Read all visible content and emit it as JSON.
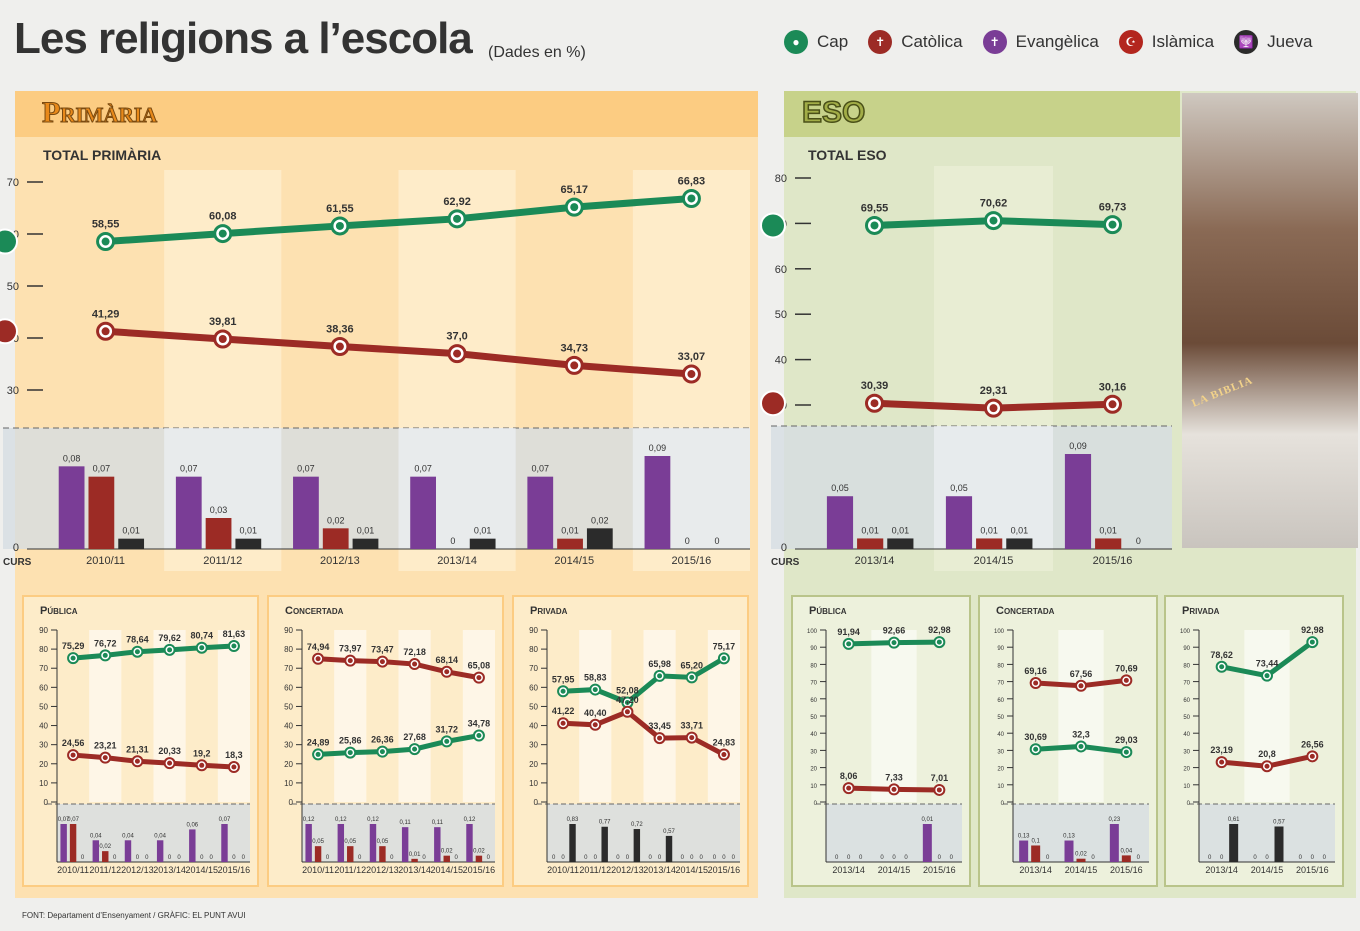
{
  "header": {
    "title": "Les religions a l’escola",
    "subtitle": "(Dades en %)"
  },
  "legend": [
    {
      "label": "Cap",
      "color": "#1b8a57",
      "icon": "circle-icon"
    },
    {
      "label": "Catòlica",
      "color": "#9c2b25",
      "icon": "cross-icon"
    },
    {
      "label": "Evangèlica",
      "color": "#7a3d96",
      "icon": "cross-icon"
    },
    {
      "label": "Islàmica",
      "color": "#b3261e",
      "icon": "crescent-icon"
    },
    {
      "label": "Jueva",
      "color": "#2b2b2b",
      "icon": "menorah-icon"
    }
  ],
  "primaria": {
    "heading": "Primària",
    "total_label": "TOTAL PRIMÀRIA"
  },
  "eso": {
    "heading": "ESO",
    "total_label": "TOTAL ESO"
  },
  "photo": {
    "book_text": "LA BIBLIA"
  },
  "source": "FONT: Departament d’Ensenyament / GRÀFIC: EL PUNT AVUI",
  "chart_data": [
    {
      "id": "total-primaria",
      "type": "line",
      "title": "TOTAL PRIMÀRIA",
      "x_label": "CURS",
      "categories": [
        "2010/11",
        "2011/12",
        "2012/13",
        "2013/14",
        "2014/15",
        "2015/16"
      ],
      "ylim_line": [
        30,
        70
      ],
      "yticks_line": [
        30,
        40,
        50,
        60,
        70
      ],
      "series": [
        {
          "name": "Cap",
          "color": "#1b8a57",
          "values": [
            58.55,
            60.08,
            61.55,
            62.92,
            65.17,
            66.83
          ],
          "labels": [
            "58,55",
            "60,08",
            "61,55",
            "62,92",
            "65,17",
            "66,83"
          ]
        },
        {
          "name": "Catòlica",
          "color": "#9c2b25",
          "values": [
            41.29,
            39.81,
            38.36,
            37.0,
            34.73,
            33.07
          ],
          "labels": [
            "41,29",
            "39,81",
            "38,36",
            "37,0",
            "34,73",
            "33,07"
          ]
        }
      ],
      "bar_series": [
        {
          "name": "Evangèlica",
          "color": "#7a3d96",
          "values": [
            0.08,
            0.07,
            0.07,
            0.07,
            0.07,
            0.09
          ],
          "labels": [
            "0,08",
            "0,07",
            "0,07",
            "0,07",
            "0,07",
            "0,09"
          ]
        },
        {
          "name": "Islàmica",
          "color": "#9c2b25",
          "values": [
            0.07,
            0.03,
            0.02,
            0,
            0.01,
            0
          ],
          "labels": [
            "0,07",
            "0,03",
            "0,02",
            "0",
            "0,01",
            "0"
          ]
        },
        {
          "name": "Jueva",
          "color": "#2b2b2b",
          "values": [
            0.01,
            0.01,
            0.01,
            0.01,
            0.02,
            0
          ],
          "labels": [
            "0,01",
            "0,01",
            "0,01",
            "0,01",
            "0,02",
            "0"
          ]
        }
      ],
      "bar_zero_label": "0"
    },
    {
      "id": "total-eso",
      "type": "line",
      "title": "TOTAL ESO",
      "x_label": "CURS",
      "categories": [
        "2013/14",
        "2014/15",
        "2015/16"
      ],
      "ylim_line": [
        30,
        80
      ],
      "yticks_line": [
        30,
        40,
        50,
        60,
        70,
        80
      ],
      "series": [
        {
          "name": "Cap",
          "color": "#1b8a57",
          "values": [
            69.55,
            70.62,
            69.73
          ],
          "labels": [
            "69,55",
            "70,62",
            "69,73"
          ]
        },
        {
          "name": "Catòlica",
          "color": "#9c2b25",
          "values": [
            30.39,
            29.31,
            30.16
          ],
          "labels": [
            "30,39",
            "29,31",
            "30,16"
          ]
        }
      ],
      "bar_series": [
        {
          "name": "Evangèlica",
          "color": "#7a3d96",
          "values": [
            0.05,
            0.05,
            0.09
          ],
          "labels": [
            "0,05",
            "0,05",
            "0,09"
          ]
        },
        {
          "name": "Islàmica",
          "color": "#9c2b25",
          "values": [
            0.01,
            0.01,
            0.01
          ],
          "labels": [
            "0,01",
            "0,01",
            "0,01"
          ]
        },
        {
          "name": "Jueva",
          "color": "#2b2b2b",
          "values": [
            0.01,
            0.01,
            0
          ],
          "labels": [
            "0,01",
            "0,01",
            "0"
          ]
        }
      ],
      "bar_zero_label": "0"
    },
    {
      "id": "primaria-publica",
      "type": "line",
      "title": "Pública",
      "categories": [
        "2010/11",
        "2011/12",
        "2012/13",
        "2013/14",
        "2014/15",
        "2015/16"
      ],
      "ylim": [
        0,
        90
      ],
      "yticks": [
        0,
        10,
        20,
        30,
        40,
        50,
        60,
        70,
        80,
        90
      ],
      "series": [
        {
          "name": "Cap",
          "color": "#1b8a57",
          "values": [
            75.29,
            76.72,
            78.64,
            79.62,
            80.74,
            81.63
          ],
          "labels": [
            "75,29",
            "76,72",
            "78,64",
            "79,62",
            "80,74",
            "81,63"
          ]
        },
        {
          "name": "Catòlica",
          "color": "#9c2b25",
          "values": [
            24.56,
            23.21,
            21.31,
            20.33,
            19.2,
            18.3
          ],
          "labels": [
            "24,56",
            "23,21",
            "21,31",
            "20,33",
            "19,2",
            "18,3"
          ]
        }
      ],
      "bar_series": [
        {
          "name": "Evangèlica",
          "color": "#7a3d96",
          "values": [
            0.07,
            0.04,
            0.04,
            0.04,
            0.06,
            0.07
          ],
          "labels": [
            "0,07",
            "0,04",
            "0,04",
            "0,04",
            "0,06",
            "0,07"
          ]
        },
        {
          "name": "Islàmica",
          "color": "#9c2b25",
          "values": [
            0.07,
            0.02,
            0,
            0,
            0,
            0
          ],
          "labels": [
            "0,07",
            "0,02",
            "0",
            "0",
            "0",
            "0"
          ]
        },
        {
          "name": "Jueva",
          "color": "#2b2b2b",
          "values": [
            0,
            0,
            0,
            0,
            0,
            0
          ],
          "labels": [
            "0",
            "0",
            "0",
            "0",
            "0",
            "0"
          ]
        }
      ]
    },
    {
      "id": "primaria-concertada",
      "type": "line",
      "title": "Concertada",
      "categories": [
        "2010/11",
        "2011/12",
        "2012/13",
        "2013/14",
        "2014/15",
        "2015/16"
      ],
      "ylim": [
        0,
        90
      ],
      "yticks": [
        0,
        10,
        20,
        30,
        40,
        50,
        60,
        70,
        80,
        90
      ],
      "series": [
        {
          "name": "Catòlica",
          "color": "#9c2b25",
          "values": [
            74.94,
            73.97,
            73.47,
            72.18,
            68.14,
            65.08
          ],
          "labels": [
            "74,94",
            "73,97",
            "73,47",
            "72,18",
            "68,14",
            "65,08"
          ]
        },
        {
          "name": "Cap",
          "color": "#1b8a57",
          "values": [
            24.89,
            25.86,
            26.36,
            27.68,
            31.72,
            34.78
          ],
          "labels": [
            "24,89",
            "25,86",
            "26,36",
            "27,68",
            "31,72",
            "34,78"
          ]
        }
      ],
      "bar_series": [
        {
          "name": "Evangèlica",
          "color": "#7a3d96",
          "values": [
            0.12,
            0.12,
            0.12,
            0.11,
            0.11,
            0.12
          ],
          "labels": [
            "0,12",
            "0,12",
            "0,12",
            "0,11",
            "0,11",
            "0,12"
          ]
        },
        {
          "name": "Islàmica",
          "color": "#9c2b25",
          "values": [
            0.05,
            0.05,
            0.05,
            0.01,
            0.02,
            0.02
          ],
          "labels": [
            "0,05",
            "0,05",
            "0,05",
            "0,01",
            "0,02",
            "0,02"
          ]
        },
        {
          "name": "Jueva",
          "color": "#2b2b2b",
          "values": [
            0,
            0,
            0,
            0,
            0,
            0
          ],
          "labels": [
            "0",
            "0",
            "0",
            "0",
            "0",
            "0"
          ]
        }
      ]
    },
    {
      "id": "primaria-privada",
      "type": "line",
      "title": "Privada",
      "categories": [
        "2010/11",
        "2011/12",
        "2012/13",
        "2013/14",
        "2014/15",
        "2015/16"
      ],
      "ylim": [
        0,
        90
      ],
      "yticks": [
        0,
        10,
        20,
        30,
        40,
        50,
        60,
        70,
        80,
        90
      ],
      "series": [
        {
          "name": "Cap",
          "color": "#1b8a57",
          "values": [
            57.95,
            58.83,
            52.08,
            65.98,
            65.2,
            75.17
          ],
          "labels": [
            "57,95",
            "58,83",
            "52,08",
            "65,98",
            "65,20",
            "75,17"
          ]
        },
        {
          "name": "Catòlica",
          "color": "#9c2b25",
          "values": [
            41.22,
            40.4,
            47.2,
            33.45,
            33.71,
            24.83
          ],
          "labels": [
            "41,22",
            "40,40",
            "47,20",
            "33,45",
            "33,71",
            "24,83"
          ]
        }
      ],
      "bar_series": [
        {
          "name": "Evangèlica",
          "color": "#7a3d96",
          "values": [
            0,
            0,
            0,
            0,
            0,
            0
          ],
          "labels": [
            "0",
            "0",
            "0",
            "0",
            "0",
            "0"
          ]
        },
        {
          "name": "Islàmica",
          "color": "#9c2b25",
          "values": [
            0,
            0,
            0,
            0,
            0,
            0
          ],
          "labels": [
            "0",
            "0",
            "0",
            "0",
            "0",
            "0"
          ]
        },
        {
          "name": "Jueva",
          "color": "#2b2b2b",
          "values": [
            0.83,
            0.77,
            0.72,
            0.57,
            0,
            0
          ],
          "labels": [
            "0,83",
            "0,77",
            "0,72",
            "0,57",
            "0",
            "0"
          ]
        }
      ]
    },
    {
      "id": "eso-publica",
      "type": "line",
      "title": "Pública",
      "categories": [
        "2013/14",
        "2014/15",
        "2015/16"
      ],
      "ylim": [
        0,
        100
      ],
      "yticks": [
        0,
        10,
        20,
        30,
        40,
        50,
        60,
        70,
        80,
        90,
        100
      ],
      "series": [
        {
          "name": "Cap",
          "color": "#1b8a57",
          "values": [
            91.94,
            92.66,
            92.98
          ],
          "labels": [
            "91,94",
            "92,66",
            "92,98"
          ]
        },
        {
          "name": "Catòlica",
          "color": "#9c2b25",
          "values": [
            8.06,
            7.33,
            7.01
          ],
          "labels": [
            "8,06",
            "7,33",
            "7,01"
          ]
        }
      ],
      "bar_series": [
        {
          "name": "Evangèlica",
          "color": "#7a3d96",
          "values": [
            0,
            0,
            0.01
          ],
          "labels": [
            "0",
            "0",
            "0,01"
          ]
        },
        {
          "name": "Islàmica",
          "color": "#9c2b25",
          "values": [
            0,
            0,
            0
          ],
          "labels": [
            "0",
            "0",
            "0"
          ]
        },
        {
          "name": "Jueva",
          "color": "#2b2b2b",
          "values": [
            0,
            0,
            0
          ],
          "labels": [
            "0",
            "0",
            "0"
          ]
        }
      ]
    },
    {
      "id": "eso-concertada",
      "type": "line",
      "title": "Concertada",
      "categories": [
        "2013/14",
        "2014/15",
        "2015/16"
      ],
      "ylim": [
        0,
        100
      ],
      "yticks": [
        0,
        10,
        20,
        30,
        40,
        50,
        60,
        70,
        80,
        90,
        100
      ],
      "series": [
        {
          "name": "Catòlica",
          "color": "#9c2b25",
          "values": [
            69.16,
            67.56,
            70.69
          ],
          "labels": [
            "69,16",
            "67,56",
            "70,69"
          ]
        },
        {
          "name": "Cap",
          "color": "#1b8a57",
          "values": [
            30.69,
            32.3,
            29.03
          ],
          "labels": [
            "30,69",
            "32,3",
            "29,03"
          ]
        }
      ],
      "bar_series": [
        {
          "name": "Evangèlica",
          "color": "#7a3d96",
          "values": [
            0.13,
            0.13,
            0.23
          ],
          "labels": [
            "0,13",
            "0,13",
            "0,23"
          ]
        },
        {
          "name": "Islàmica",
          "color": "#9c2b25",
          "values": [
            0.1,
            0.02,
            0.04
          ],
          "labels": [
            "0,1",
            "0,02",
            "0,04"
          ]
        },
        {
          "name": "Jueva",
          "color": "#2b2b2b",
          "values": [
            0,
            0,
            0
          ],
          "labels": [
            "0",
            "0",
            "0"
          ]
        }
      ]
    },
    {
      "id": "eso-privada",
      "type": "line",
      "title": "Privada",
      "categories": [
        "2013/14",
        "2014/15",
        "2015/16"
      ],
      "ylim": [
        0,
        100
      ],
      "yticks": [
        0,
        10,
        20,
        30,
        40,
        50,
        60,
        70,
        80,
        90,
        100
      ],
      "series": [
        {
          "name": "Cap",
          "color": "#1b8a57",
          "values": [
            78.62,
            73.44,
            92.98
          ],
          "labels": [
            "78,62",
            "73,44",
            "92,98"
          ]
        },
        {
          "name": "Catòlica",
          "color": "#9c2b25",
          "values": [
            23.19,
            20.8,
            26.56
          ],
          "labels": [
            "23,19",
            "20,8",
            "26,56"
          ]
        }
      ],
      "bar_series": [
        {
          "name": "Evangèlica",
          "color": "#7a3d96",
          "values": [
            0,
            0,
            0
          ],
          "labels": [
            "0",
            "0",
            "0"
          ]
        },
        {
          "name": "Islàmica",
          "color": "#9c2b25",
          "values": [
            0,
            0,
            0
          ],
          "labels": [
            "0",
            "0",
            "0"
          ]
        },
        {
          "name": "Jueva",
          "color": "#2b2b2b",
          "values": [
            0.61,
            0.57,
            0
          ],
          "labels": [
            "0,61",
            "0,57",
            "0"
          ]
        }
      ]
    }
  ]
}
